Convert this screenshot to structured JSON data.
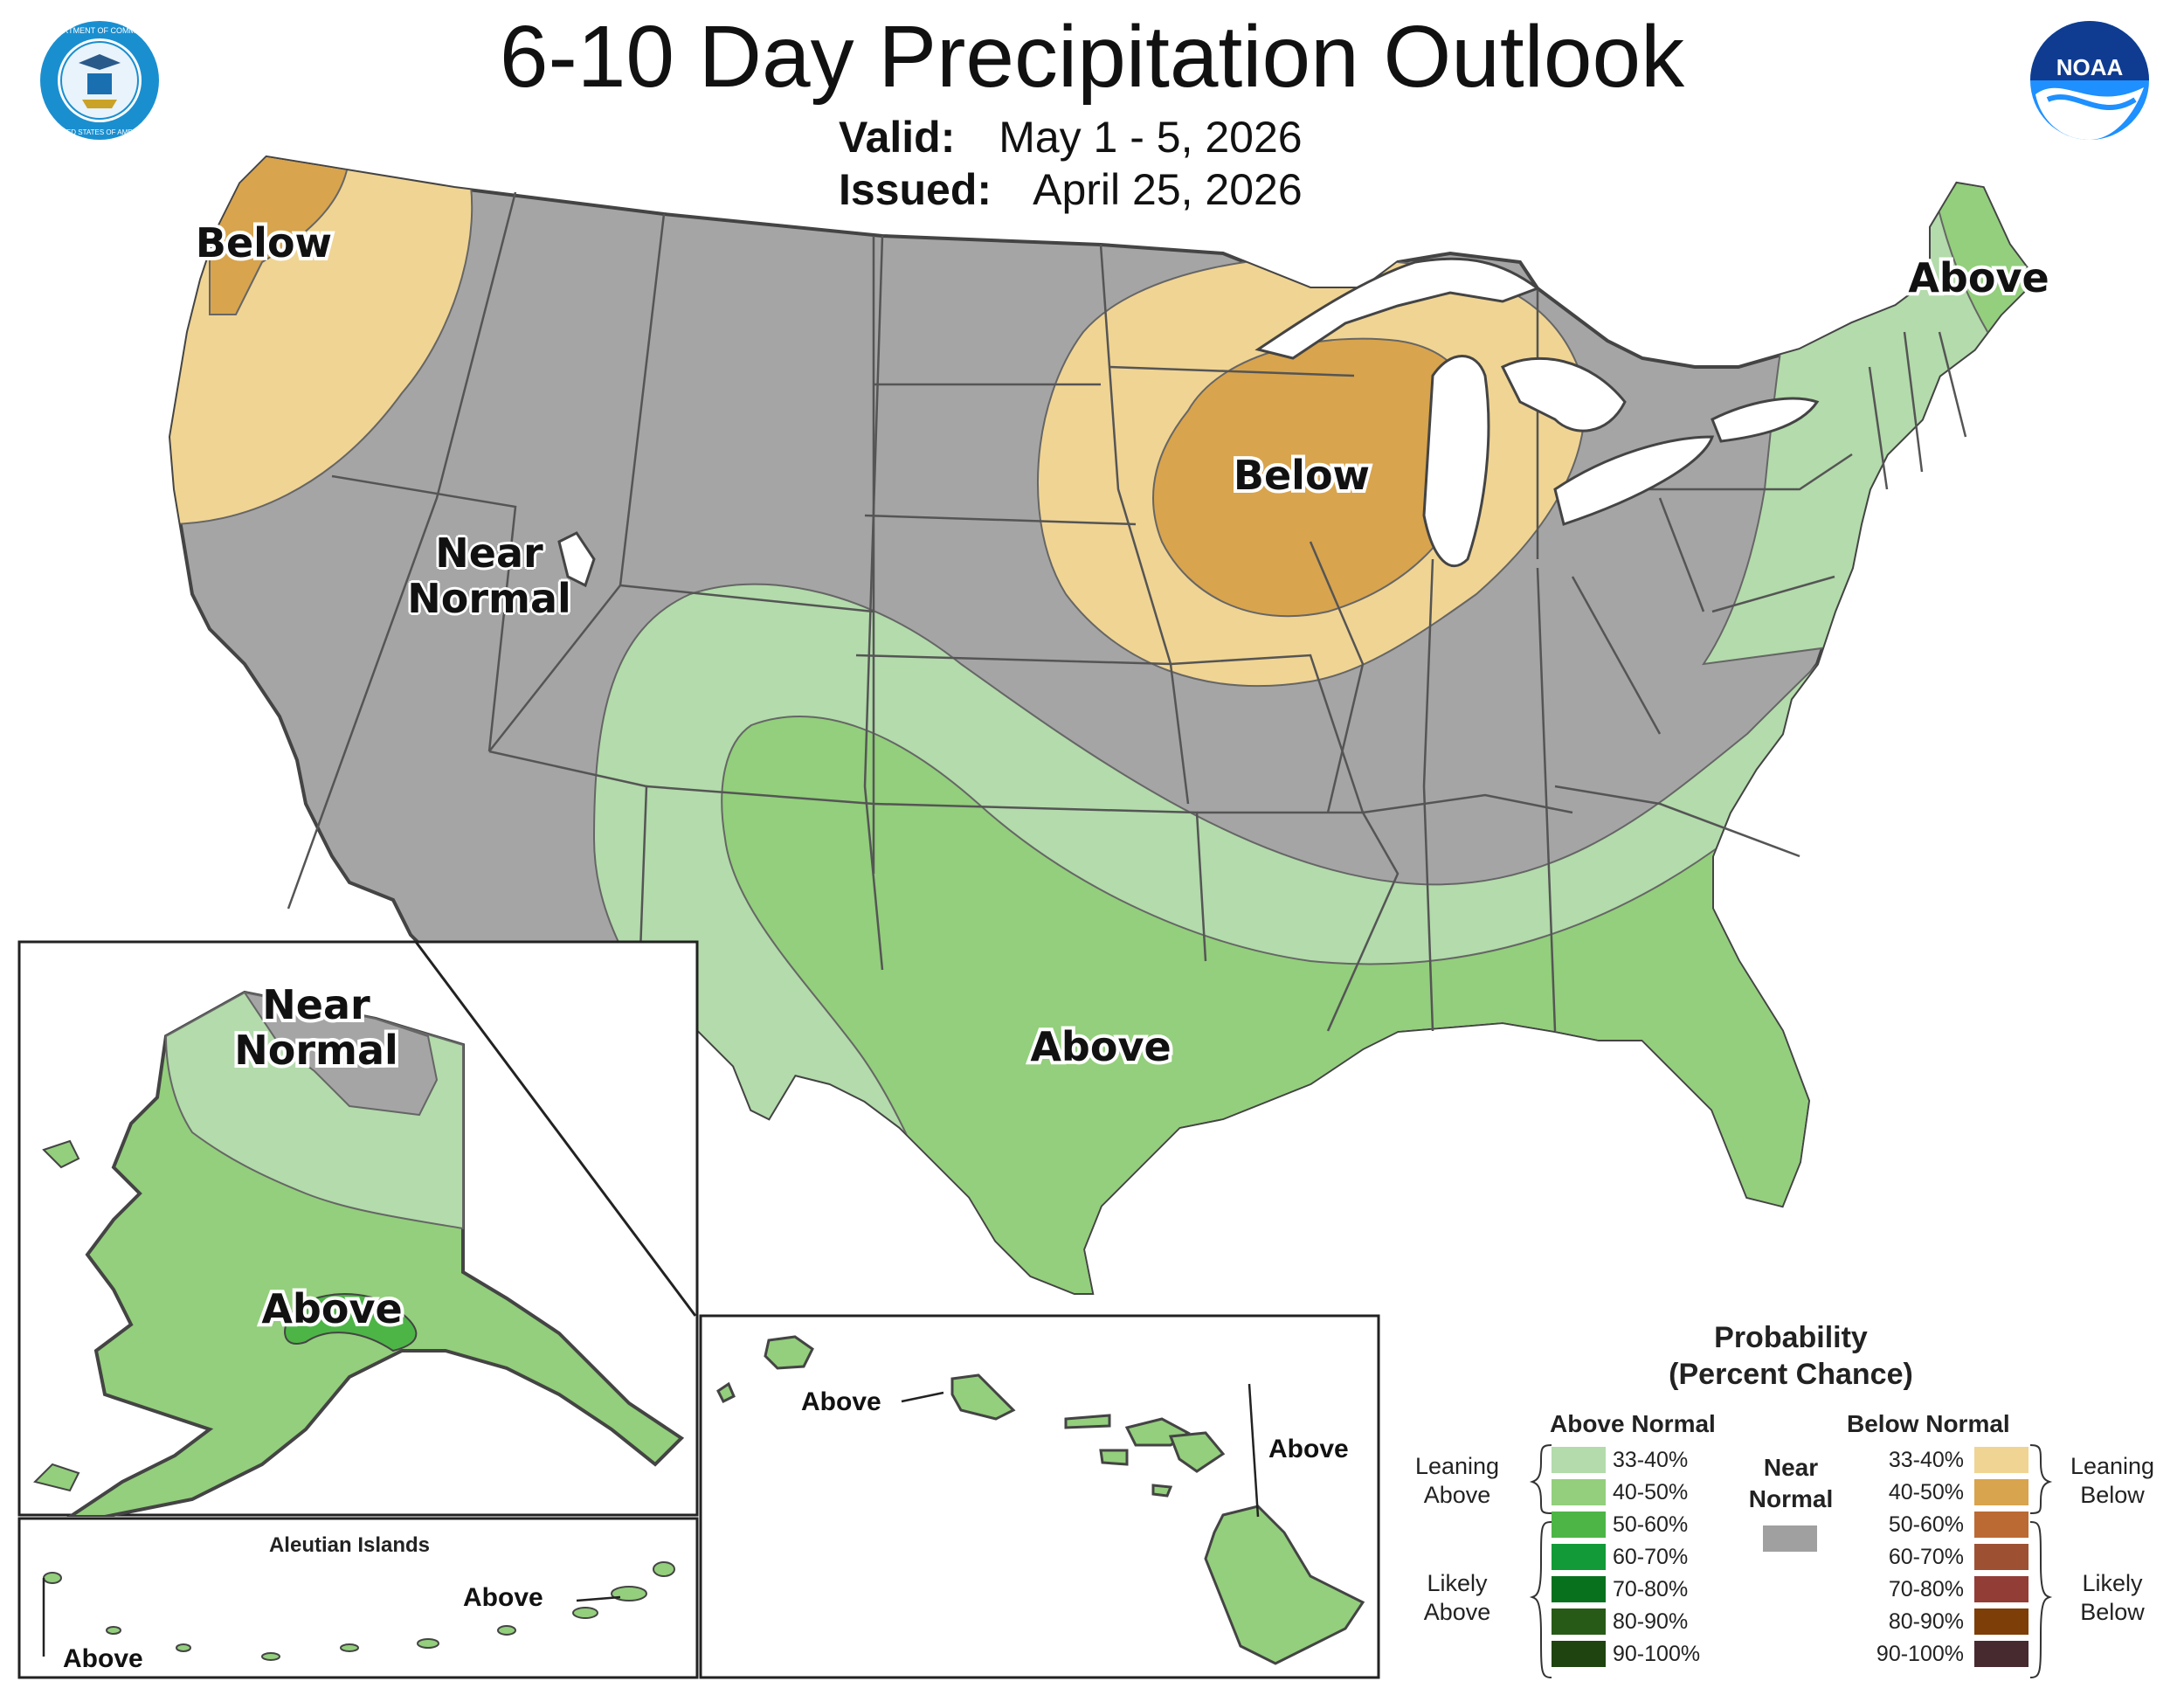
{
  "header": {
    "title": "6-10 Day Precipitation Outlook",
    "valid_label": "Valid:",
    "valid_value": "May 1 - 5, 2026",
    "issued_label": "Issued:",
    "issued_value": "April 25, 2026"
  },
  "logos": {
    "left": "department-of-commerce-seal",
    "right": "noaa-logo",
    "noaa_text": "NOAA",
    "seal_text_top": "DEPARTMENT OF COMMERCE",
    "seal_text_bottom": "UNITED STATES OF AMERICA"
  },
  "map_labels": {
    "northwest": "Below",
    "great_lakes": "Below",
    "northeast": "Above",
    "west_near_normal": "Near Normal",
    "south": "Above",
    "alaska_near_normal": "Near Normal",
    "alaska_above": "Above",
    "hawaii_west": "Above",
    "hawaii_east": "Above",
    "aleutian_title": "Aleutian Islands",
    "aleutian_east": "Above",
    "aleutian_west": "Above"
  },
  "legend": {
    "title_line1": "Probability",
    "title_line2": "(Percent Chance)",
    "above_header": "Above Normal",
    "below_header": "Below Normal",
    "near_normal_line1": "Near",
    "near_normal_line2": "Normal",
    "near_normal_color": "#a0a0a0",
    "leaning_above_line1": "Leaning",
    "leaning_above_line2": "Above",
    "likely_above_line1": "Likely",
    "likely_above_line2": "Above",
    "leaning_below_line1": "Leaning",
    "leaning_below_line2": "Below",
    "likely_below_line1": "Likely",
    "likely_below_line2": "Below",
    "above_rows": [
      {
        "label": "33-40%",
        "color": "#b3dbab"
      },
      {
        "label": "40-50%",
        "color": "#93cf7c"
      },
      {
        "label": "50-60%",
        "color": "#4db546"
      },
      {
        "label": "60-70%",
        "color": "#129a38"
      },
      {
        "label": "70-80%",
        "color": "#08711e"
      },
      {
        "label": "80-90%",
        "color": "#285a17"
      },
      {
        "label": "90-100%",
        "color": "#1f4410"
      }
    ],
    "below_rows": [
      {
        "label": "33-40%",
        "color": "#f0d493"
      },
      {
        "label": "40-50%",
        "color": "#d8a44d"
      },
      {
        "label": "50-60%",
        "color": "#bb6a33"
      },
      {
        "label": "60-70%",
        "color": "#9d5132"
      },
      {
        "label": "70-80%",
        "color": "#923d36"
      },
      {
        "label": "80-90%",
        "color": "#7d3e07"
      },
      {
        "label": "90-100%",
        "color": "#472a2f"
      }
    ]
  },
  "map_colors": {
    "near_normal": "#a5a5a5",
    "above_33_40": "#b3dbab",
    "above_40_50": "#93cf7c",
    "above_50_60": "#4db546",
    "below_33_40": "#f0d493",
    "below_40_50": "#d8a44d",
    "border": "#555555",
    "water": "#ffffff"
  }
}
